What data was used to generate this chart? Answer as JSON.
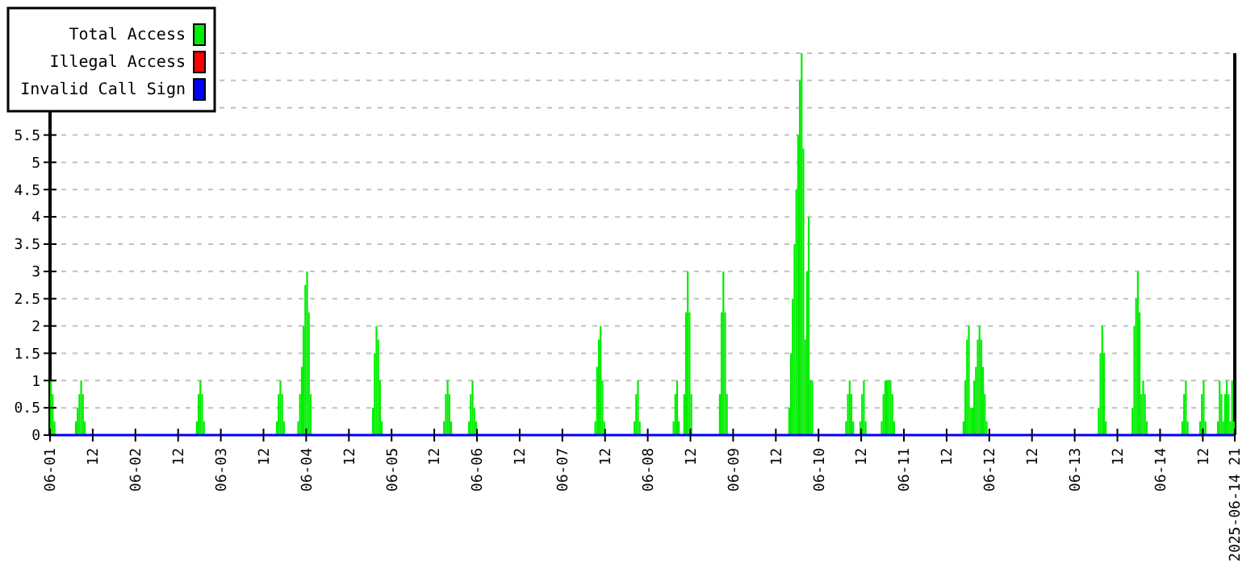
{
  "chart_data": {
    "type": "bar",
    "xlim": [
      "2025-06-01T00:00",
      "2025-06-14T21:00"
    ],
    "ylim": [
      0,
      7
    ],
    "yticks": [
      0,
      0.5,
      1,
      1.5,
      2,
      2.5,
      3,
      3.5,
      4,
      4.5,
      5,
      5.5,
      {
        "value": 6,
        "label": null
      },
      {
        "value": 6.5,
        "label": null
      },
      {
        "value": 7,
        "label": null
      }
    ],
    "xticks": [
      {
        "value": "2025-06-01T00:00",
        "label": "06-01"
      },
      {
        "value": "2025-06-01T12:00",
        "label": "12"
      },
      {
        "value": "2025-06-02T00:00",
        "label": "06-02"
      },
      {
        "value": "2025-06-02T12:00",
        "label": "12"
      },
      {
        "value": "2025-06-03T00:00",
        "label": "06-03"
      },
      {
        "value": "2025-06-03T12:00",
        "label": "12"
      },
      {
        "value": "2025-06-04T00:00",
        "label": "06-04"
      },
      {
        "value": "2025-06-04T12:00",
        "label": "12"
      },
      {
        "value": "2025-06-05T00:00",
        "label": "06-05"
      },
      {
        "value": "2025-06-05T12:00",
        "label": "12"
      },
      {
        "value": "2025-06-06T00:00",
        "label": "06-06"
      },
      {
        "value": "2025-06-06T12:00",
        "label": "12"
      },
      {
        "value": "2025-06-07T00:00",
        "label": "06-07"
      },
      {
        "value": "2025-06-07T12:00",
        "label": "12"
      },
      {
        "value": "2025-06-08T00:00",
        "label": "06-08"
      },
      {
        "value": "2025-06-08T12:00",
        "label": "12"
      },
      {
        "value": "2025-06-09T00:00",
        "label": "06-09"
      },
      {
        "value": "2025-06-09T12:00",
        "label": "12"
      },
      {
        "value": "2025-06-10T00:00",
        "label": "06-10"
      },
      {
        "value": "2025-06-10T12:00",
        "label": "12"
      },
      {
        "value": "2025-06-11T00:00",
        "label": "06-11"
      },
      {
        "value": "2025-06-11T12:00",
        "label": "12"
      },
      {
        "value": "2025-06-12T00:00",
        "label": "06-12"
      },
      {
        "value": "2025-06-12T12:00",
        "label": "12"
      },
      {
        "value": "2025-06-13T00:00",
        "label": "06-13"
      },
      {
        "value": "2025-06-13T12:00",
        "label": "12"
      },
      {
        "value": "2025-06-14T00:00",
        "label": "06-14"
      },
      {
        "value": "2025-06-14T12:00",
        "label": "12"
      },
      {
        "value": "2025-06-14T21:00",
        "label": "2025-06-14 21"
      }
    ],
    "grid": "y",
    "legend": "top left",
    "series": [
      {
        "name": "Total Access",
        "color": "#00ee00",
        "x": [
          "2025-06-01T00:00",
          "2025-06-01T00:30",
          "2025-06-01T01:00",
          "2025-06-01T07:00",
          "2025-06-01T07:30",
          "2025-06-01T08:00",
          "2025-06-01T08:30",
          "2025-06-01T09:00",
          "2025-06-01T09:30",
          "2025-06-02T17:00",
          "2025-06-02T17:30",
          "2025-06-02T18:00",
          "2025-06-02T18:30",
          "2025-06-02T19:00",
          "2025-06-03T15:30",
          "2025-06-03T16:00",
          "2025-06-03T16:30",
          "2025-06-03T17:00",
          "2025-06-03T17:30",
          "2025-06-03T21:30",
          "2025-06-03T22:00",
          "2025-06-03T22:30",
          "2025-06-03T23:00",
          "2025-06-03T23:30",
          "2025-06-04T00:00",
          "2025-06-04T00:30",
          "2025-06-04T01:00",
          "2025-06-04T18:30",
          "2025-06-04T19:00",
          "2025-06-04T19:30",
          "2025-06-04T20:00",
          "2025-06-04T20:30",
          "2025-06-04T21:00",
          "2025-06-05T14:30",
          "2025-06-05T15:00",
          "2025-06-05T15:30",
          "2025-06-05T16:00",
          "2025-06-05T16:30",
          "2025-06-05T21:30",
          "2025-06-05T22:00",
          "2025-06-05T22:30",
          "2025-06-05T23:00",
          "2025-06-05T23:30",
          "2025-06-07T09:00",
          "2025-06-07T09:30",
          "2025-06-07T10:00",
          "2025-06-07T10:30",
          "2025-06-07T11:00",
          "2025-06-07T11:30",
          "2025-06-07T20:00",
          "2025-06-07T20:30",
          "2025-06-07T21:00",
          "2025-06-07T21:30",
          "2025-06-08T07:00",
          "2025-06-08T07:30",
          "2025-06-08T08:00",
          "2025-06-08T08:30",
          "2025-06-08T10:00",
          "2025-06-08T10:30",
          "2025-06-08T11:00",
          "2025-06-08T11:30",
          "2025-06-08T12:00",
          "2025-06-08T20:00",
          "2025-06-08T20:30",
          "2025-06-08T21:00",
          "2025-06-08T21:30",
          "2025-06-08T22:00",
          "2025-06-09T15:30",
          "2025-06-09T16:00",
          "2025-06-09T16:30",
          "2025-06-09T17:00",
          "2025-06-09T17:30",
          "2025-06-09T18:00",
          "2025-06-09T18:30",
          "2025-06-09T19:00",
          "2025-06-09T19:30",
          "2025-06-09T20:00",
          "2025-06-09T20:30",
          "2025-06-09T21:00",
          "2025-06-09T21:30",
          "2025-06-09T22:00",
          "2025-06-10T07:30",
          "2025-06-10T08:00",
          "2025-06-10T08:30",
          "2025-06-10T09:00",
          "2025-06-10T09:30",
          "2025-06-10T11:30",
          "2025-06-10T12:00",
          "2025-06-10T12:30",
          "2025-06-10T13:00",
          "2025-06-10T17:30",
          "2025-06-10T18:00",
          "2025-06-10T18:30",
          "2025-06-10T19:00",
          "2025-06-10T19:30",
          "2025-06-10T20:00",
          "2025-06-10T20:30",
          "2025-06-10T21:00",
          "2025-06-11T16:30",
          "2025-06-11T17:00",
          "2025-06-11T17:30",
          "2025-06-11T18:00",
          "2025-06-11T18:30",
          "2025-06-11T19:00",
          "2025-06-11T19:30",
          "2025-06-11T20:00",
          "2025-06-11T20:30",
          "2025-06-11T21:00",
          "2025-06-11T21:30",
          "2025-06-11T22:00",
          "2025-06-11T22:30",
          "2025-06-11T23:00",
          "2025-06-13T06:30",
          "2025-06-13T07:00",
          "2025-06-13T07:30",
          "2025-06-13T08:00",
          "2025-06-13T08:30",
          "2025-06-13T16:00",
          "2025-06-13T16:30",
          "2025-06-13T17:00",
          "2025-06-13T17:30",
          "2025-06-13T18:00",
          "2025-06-13T18:30",
          "2025-06-13T19:00",
          "2025-06-13T19:30",
          "2025-06-13T20:00",
          "2025-06-14T06:00",
          "2025-06-14T06:30",
          "2025-06-14T07:00",
          "2025-06-14T07:30",
          "2025-06-14T11:00",
          "2025-06-14T11:30",
          "2025-06-14T12:00",
          "2025-06-14T12:30",
          "2025-06-14T16:00",
          "2025-06-14T16:30",
          "2025-06-14T17:00",
          "2025-06-14T17:30",
          "2025-06-14T18:00",
          "2025-06-14T18:30",
          "2025-06-14T19:00",
          "2025-06-14T19:30",
          "2025-06-14T20:00",
          "2025-06-14T20:30"
        ],
        "values": [
          1,
          0.75,
          0.25,
          0.25,
          0.5,
          0.75,
          1,
          0.75,
          0.25,
          0.25,
          0.75,
          1,
          0.75,
          0.25,
          0.25,
          0.75,
          1,
          0.75,
          0.25,
          0.25,
          0.75,
          1.25,
          2,
          2.75,
          3,
          2.25,
          0.75,
          0.5,
          1.5,
          2,
          1.75,
          1,
          0.25,
          0.25,
          0.75,
          1,
          0.75,
          0.25,
          0.25,
          0.75,
          1,
          0.5,
          0.25,
          0.25,
          1.25,
          1.75,
          2,
          1,
          0.25,
          0.25,
          0.75,
          1,
          0.25,
          0.25,
          0.75,
          1,
          0.25,
          0.75,
          2.25,
          3,
          2.25,
          0.75,
          0.75,
          2.25,
          3,
          2.25,
          0.75,
          0.5,
          1.5,
          2.5,
          3.5,
          4.5,
          5.5,
          6.5,
          7,
          5.25,
          1.75,
          3,
          4,
          1,
          1,
          0.25,
          0.75,
          1,
          0.75,
          0.25,
          0.25,
          0.75,
          1,
          0.25,
          0.25,
          0.75,
          1,
          1,
          1,
          1,
          0.75,
          0.25,
          0.25,
          1,
          1.75,
          2,
          0.5,
          0.5,
          1,
          1.25,
          1.75,
          2,
          1.75,
          1.25,
          0.75,
          0.25,
          0.5,
          1.5,
          2,
          1.5,
          0.25,
          0.5,
          2,
          2.5,
          3,
          2.25,
          0.75,
          1,
          0.75,
          0.25,
          0.25,
          0.75,
          1,
          0.25,
          0.25,
          0.75,
          1,
          0.25,
          0.25,
          1,
          0.75,
          0.25,
          0.75,
          1,
          0.75,
          0.25,
          1,
          0.25
        ]
      },
      {
        "name": "Illegal Access",
        "color": "#ff0000",
        "type": "line"
      },
      {
        "name": "Invalid Call Sign",
        "color": "#0000ff",
        "type": "line",
        "x": [
          "2025-06-01T00:00",
          "2025-06-14T21:00"
        ],
        "values": [
          0,
          0
        ]
      }
    ]
  }
}
